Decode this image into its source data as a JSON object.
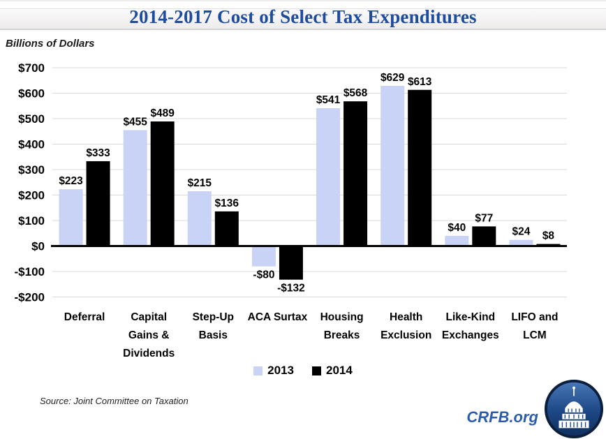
{
  "header": {
    "title": "2014-2017 Cost of Select Tax Expenditures"
  },
  "units_label": "Billions of Dollars",
  "legend": [
    {
      "label": "2013",
      "color": "#C9D3F5"
    },
    {
      "label": "2014",
      "color": "#000000"
    }
  ],
  "footer": {
    "source": "Source: Joint Committee on Taxation",
    "brand": "CRFB.org"
  },
  "colors": {
    "series_2013": "#C9D3F5",
    "series_2014": "#000000",
    "title_text": "#1D4C9F",
    "brand_text": "#2B5CAD",
    "gridline": "#D9D9D9",
    "axis_line": "#000000",
    "logo_navy": "#0B1F3C",
    "logo_blue_top": "#4878B8",
    "logo_blue_bottom": "#0E2F5E"
  },
  "chart_data": {
    "type": "bar",
    "title": "2014-2017 Cost of Select Tax Expenditures",
    "ylabel": "Billions of Dollars",
    "categories": [
      "Deferral",
      "Capital Gains & Dividends",
      "Step-Up Basis",
      "ACA Surtax",
      "Housing Breaks",
      "Health Exclusion",
      "Like-Kind Exchanges",
      "LIFO and LCM"
    ],
    "category_lines": [
      [
        "Deferral"
      ],
      [
        "Capital",
        "Gains &",
        "Dividends"
      ],
      [
        "Step-Up",
        "Basis"
      ],
      [
        "ACA Surtax"
      ],
      [
        "Housing",
        "Breaks"
      ],
      [
        "Health",
        "Exclusion"
      ],
      [
        "Like-Kind",
        "Exchanges"
      ],
      [
        "LIFO and",
        "LCM"
      ]
    ],
    "series": [
      {
        "name": "2013",
        "values": [
          223,
          455,
          215,
          -80,
          541,
          629,
          40,
          24
        ]
      },
      {
        "name": "2014",
        "values": [
          333,
          489,
          136,
          -132,
          568,
          613,
          77,
          8
        ]
      }
    ],
    "ylim": [
      -200,
      700
    ],
    "ytick_interval": 100,
    "ytick_labels": [
      "$700",
      "$600",
      "$500",
      "$400",
      "$300",
      "$200",
      "$100",
      "$0",
      "-$100",
      "-$200"
    ],
    "grid": true,
    "legend_position": "bottom"
  }
}
